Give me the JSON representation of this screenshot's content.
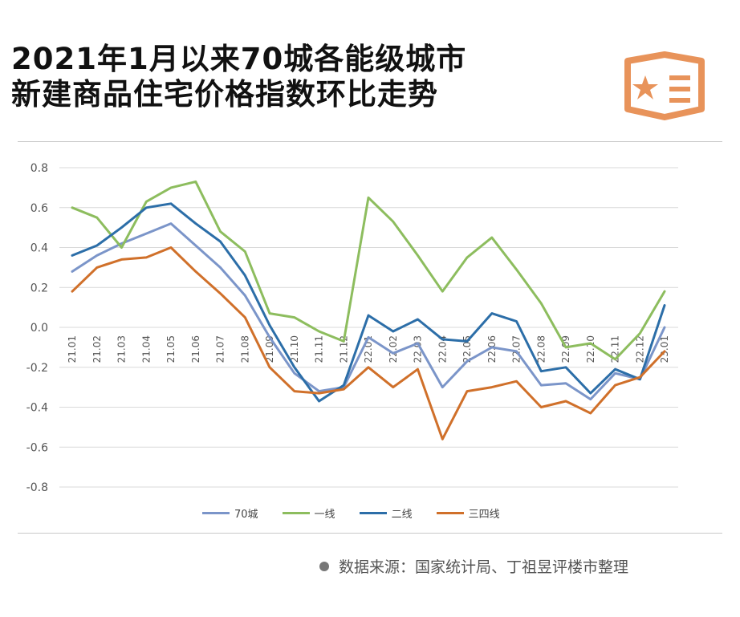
{
  "header": {
    "title_line1": "2021年1月以来70城各能级城市",
    "title_line2": "新建商品住宅价格指数环比走势"
  },
  "logo": {
    "icon": "star-list-icon",
    "color": "#e8935a"
  },
  "chart_data": {
    "type": "line",
    "title": "2021年1月以来70城各能级城市新建商品住宅价格指数环比走势",
    "categories": [
      "21.01",
      "21.02",
      "21.03",
      "21.04",
      "21.05",
      "21.06",
      "21.07",
      "21.08",
      "21.09",
      "21.10",
      "21.11",
      "21.12",
      "22.01",
      "22.02",
      "22.03",
      "22.04",
      "22.05",
      "22.06",
      "22.07",
      "22.08",
      "22.09",
      "22.10",
      "22.11",
      "22.12",
      "23.01"
    ],
    "ylim": [
      -0.8,
      0.8
    ],
    "yticks": [
      "0.8",
      "0.6",
      "0.4",
      "0.2",
      "0.0",
      "-0.2",
      "-0.4",
      "-0.6",
      "-0.8"
    ],
    "ytick_values": [
      0.8,
      0.6,
      0.4,
      0.2,
      0,
      -0.2,
      -0.4,
      -0.6,
      -0.8
    ],
    "grid": true,
    "legend_position": "bottom",
    "series": [
      {
        "name": "70城",
        "color": "#7b95c9",
        "values": [
          0.28,
          0.36,
          0.42,
          0.47,
          0.52,
          0.41,
          0.3,
          0.16,
          -0.05,
          -0.23,
          -0.32,
          -0.3,
          -0.05,
          -0.13,
          -0.08,
          -0.3,
          -0.17,
          -0.1,
          -0.12,
          -0.29,
          -0.28,
          -0.36,
          -0.23,
          -0.26,
          0.0
        ]
      },
      {
        "name": "一线",
        "color": "#8dbd5e",
        "values": [
          0.6,
          0.55,
          0.4,
          0.63,
          0.7,
          0.73,
          0.48,
          0.38,
          0.07,
          0.05,
          -0.02,
          -0.07,
          0.65,
          0.53,
          0.36,
          0.18,
          0.35,
          0.45,
          0.29,
          0.12,
          -0.1,
          -0.08,
          -0.16,
          -0.03,
          0.18
        ]
      },
      {
        "name": "二线",
        "color": "#2c6ea8",
        "values": [
          0.36,
          0.41,
          0.5,
          0.6,
          0.62,
          0.52,
          0.43,
          0.26,
          0.01,
          -0.2,
          -0.37,
          -0.29,
          0.06,
          -0.02,
          0.04,
          -0.06,
          -0.07,
          0.07,
          0.03,
          -0.22,
          -0.2,
          -0.33,
          -0.21,
          -0.26,
          0.11
        ]
      },
      {
        "name": "三四线",
        "color": "#d0702a",
        "values": [
          0.18,
          0.3,
          0.34,
          0.35,
          0.4,
          0.28,
          0.17,
          0.05,
          -0.2,
          -0.32,
          -0.33,
          -0.31,
          -0.2,
          -0.3,
          -0.21,
          -0.56,
          -0.32,
          -0.3,
          -0.27,
          -0.4,
          -0.37,
          -0.43,
          -0.29,
          -0.25,
          -0.12
        ]
      }
    ]
  },
  "footer": {
    "source": "数据来源：国家统计局、丁祖昱评楼市整理"
  }
}
